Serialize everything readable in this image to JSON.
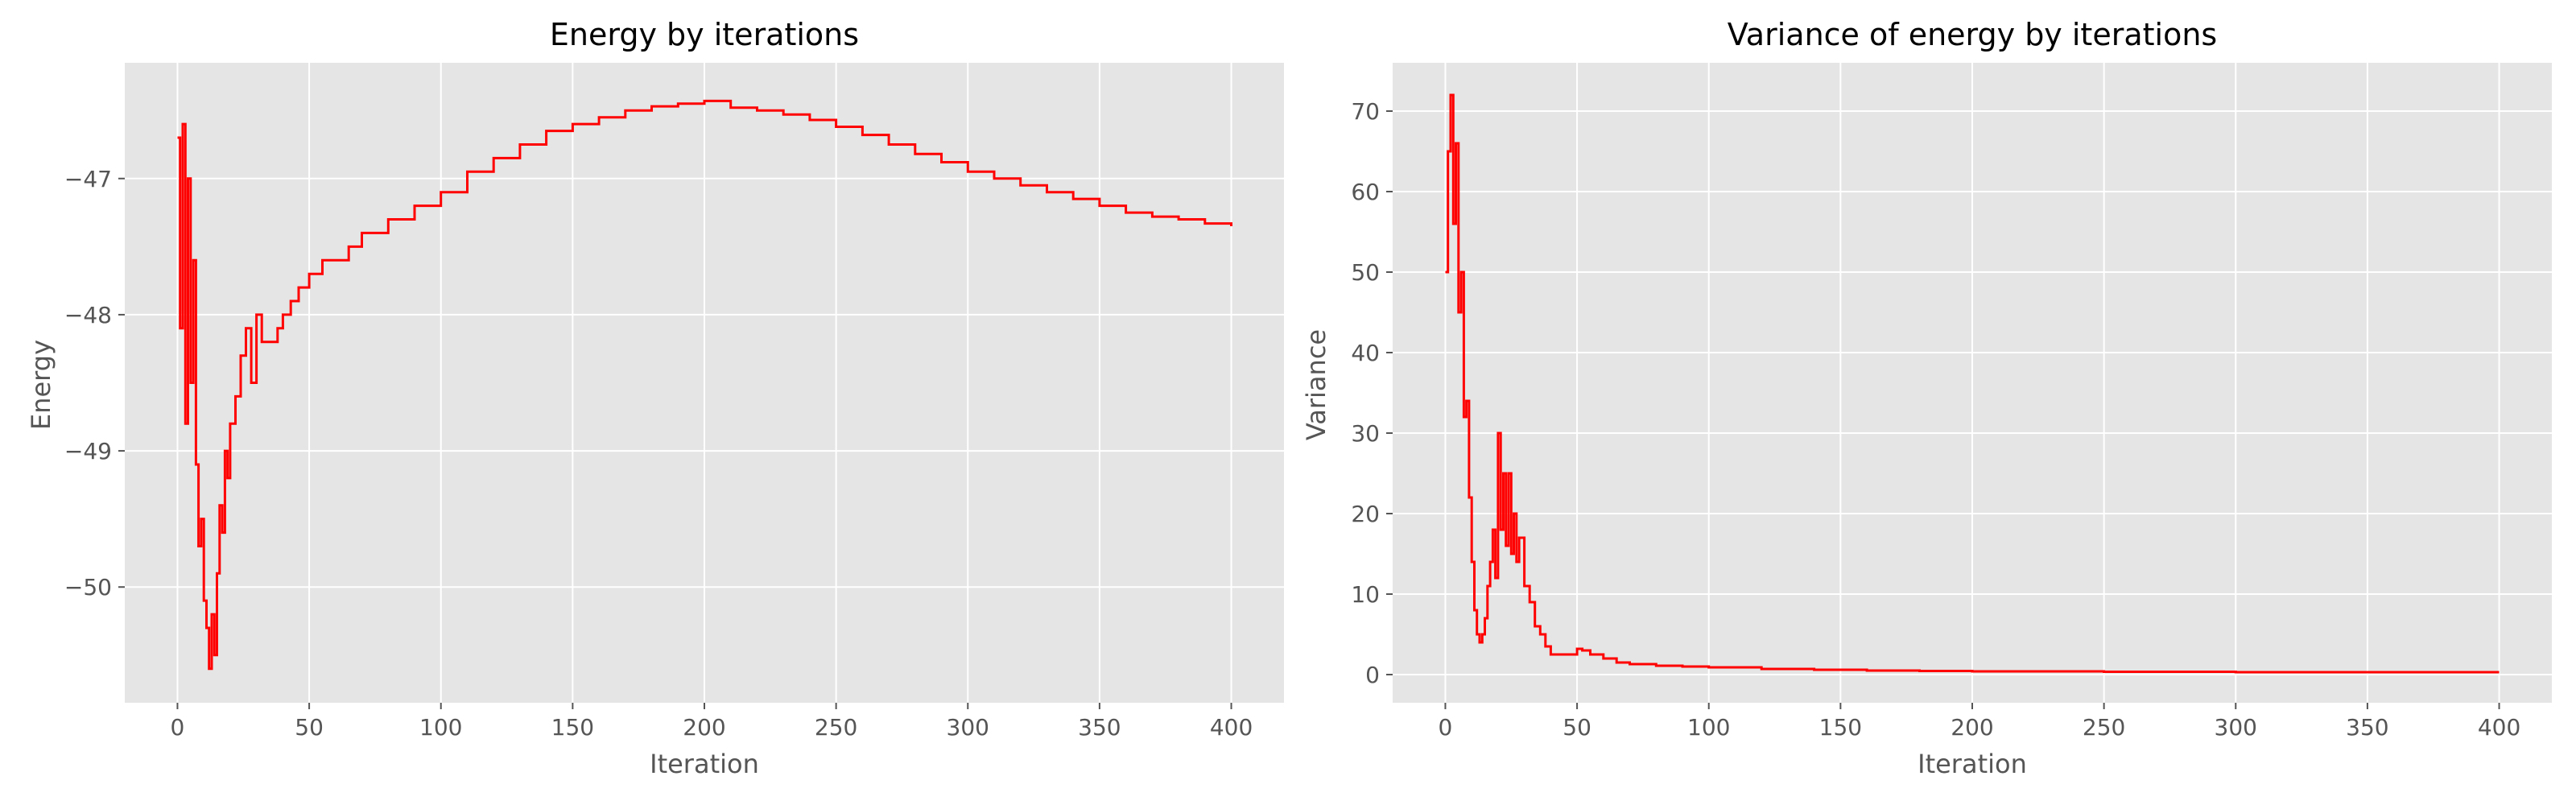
{
  "colors": {
    "figure_bg": "#ffffff",
    "axes_bg": "#e5e5e5",
    "grid": "#ffffff",
    "line": "#ff0000",
    "title_text": "#000000",
    "label_text": "#555555",
    "tick_text": "#555555"
  },
  "chart_data": [
    {
      "type": "line",
      "title": "Energy by iterations",
      "xlabel": "Iteration",
      "ylabel": "Energy",
      "xlim": [
        -20,
        420
      ],
      "ylim": [
        -50.85,
        -46.15
      ],
      "xticks": [
        0,
        50,
        100,
        150,
        200,
        250,
        300,
        350,
        400
      ],
      "yticks": [
        -50,
        -49,
        -48,
        -47
      ],
      "xtick_labels": [
        "0",
        "50",
        "100",
        "150",
        "200",
        "250",
        "300",
        "350",
        "400"
      ],
      "ytick_labels": [
        "−50",
        "−49",
        "−48",
        "−47"
      ],
      "grid": true,
      "series": [
        {
          "x": [
            0,
            1,
            2,
            3,
            4,
            5,
            6,
            7,
            8,
            9,
            10,
            11,
            12,
            13,
            14,
            15,
            16,
            17,
            18,
            19,
            20,
            22,
            24,
            26,
            28,
            30,
            32,
            35,
            38,
            40,
            43,
            46,
            50,
            55,
            60,
            65,
            70,
            75,
            80,
            90,
            100,
            110,
            120,
            130,
            140,
            150,
            160,
            170,
            180,
            190,
            200,
            210,
            220,
            230,
            240,
            250,
            260,
            270,
            280,
            290,
            300,
            310,
            320,
            330,
            340,
            350,
            360,
            370,
            380,
            390,
            400
          ],
          "y": [
            -46.7,
            -48.1,
            -46.6,
            -48.8,
            -47.0,
            -48.5,
            -47.6,
            -49.1,
            -49.7,
            -49.5,
            -50.1,
            -50.3,
            -50.6,
            -50.2,
            -50.5,
            -49.9,
            -49.4,
            -49.6,
            -49.0,
            -49.2,
            -48.8,
            -48.6,
            -48.3,
            -48.1,
            -48.5,
            -48.0,
            -48.2,
            -48.2,
            -48.1,
            -48.0,
            -47.9,
            -47.8,
            -47.7,
            -47.6,
            -47.6,
            -47.5,
            -47.4,
            -47.4,
            -47.3,
            -47.2,
            -47.1,
            -46.95,
            -46.85,
            -46.75,
            -46.65,
            -46.6,
            -46.55,
            -46.5,
            -46.47,
            -46.45,
            -46.43,
            -46.48,
            -46.5,
            -46.53,
            -46.57,
            -46.62,
            -46.68,
            -46.75,
            -46.82,
            -46.88,
            -46.95,
            -47.0,
            -47.05,
            -47.1,
            -47.15,
            -47.2,
            -47.25,
            -47.28,
            -47.3,
            -47.33,
            -47.35
          ]
        }
      ]
    },
    {
      "type": "line",
      "title": "Variance of energy by iterations",
      "xlabel": "Iteration",
      "ylabel": "Variance",
      "xlim": [
        -20,
        420
      ],
      "ylim": [
        -3.5,
        76
      ],
      "xticks": [
        0,
        50,
        100,
        150,
        200,
        250,
        300,
        350,
        400
      ],
      "yticks": [
        0,
        10,
        20,
        30,
        40,
        50,
        60,
        70
      ],
      "xtick_labels": [
        "0",
        "50",
        "100",
        "150",
        "200",
        "250",
        "300",
        "350",
        "400"
      ],
      "ytick_labels": [
        "0",
        "10",
        "20",
        "30",
        "40",
        "50",
        "60",
        "70"
      ],
      "grid": true,
      "series": [
        {
          "x": [
            0,
            1,
            2,
            3,
            4,
            5,
            6,
            7,
            8,
            9,
            10,
            11,
            12,
            13,
            14,
            15,
            16,
            17,
            18,
            19,
            20,
            21,
            22,
            23,
            24,
            25,
            26,
            27,
            28,
            30,
            32,
            34,
            36,
            38,
            40,
            45,
            50,
            52,
            55,
            60,
            65,
            70,
            80,
            90,
            100,
            120,
            140,
            160,
            180,
            200,
            250,
            300,
            350,
            400
          ],
          "y": [
            50,
            65,
            72,
            56,
            66,
            45,
            50,
            32,
            34,
            22,
            14,
            8,
            5,
            4,
            5,
            7,
            11,
            14,
            18,
            12,
            30,
            18,
            25,
            16,
            25,
            15,
            20,
            14,
            17,
            11,
            9,
            6,
            5,
            3.5,
            2.5,
            2.5,
            3.2,
            3.0,
            2.5,
            2.0,
            1.5,
            1.3,
            1.1,
            1.0,
            0.9,
            0.7,
            0.6,
            0.5,
            0.45,
            0.4,
            0.35,
            0.3,
            0.3,
            0.3
          ]
        }
      ]
    }
  ]
}
